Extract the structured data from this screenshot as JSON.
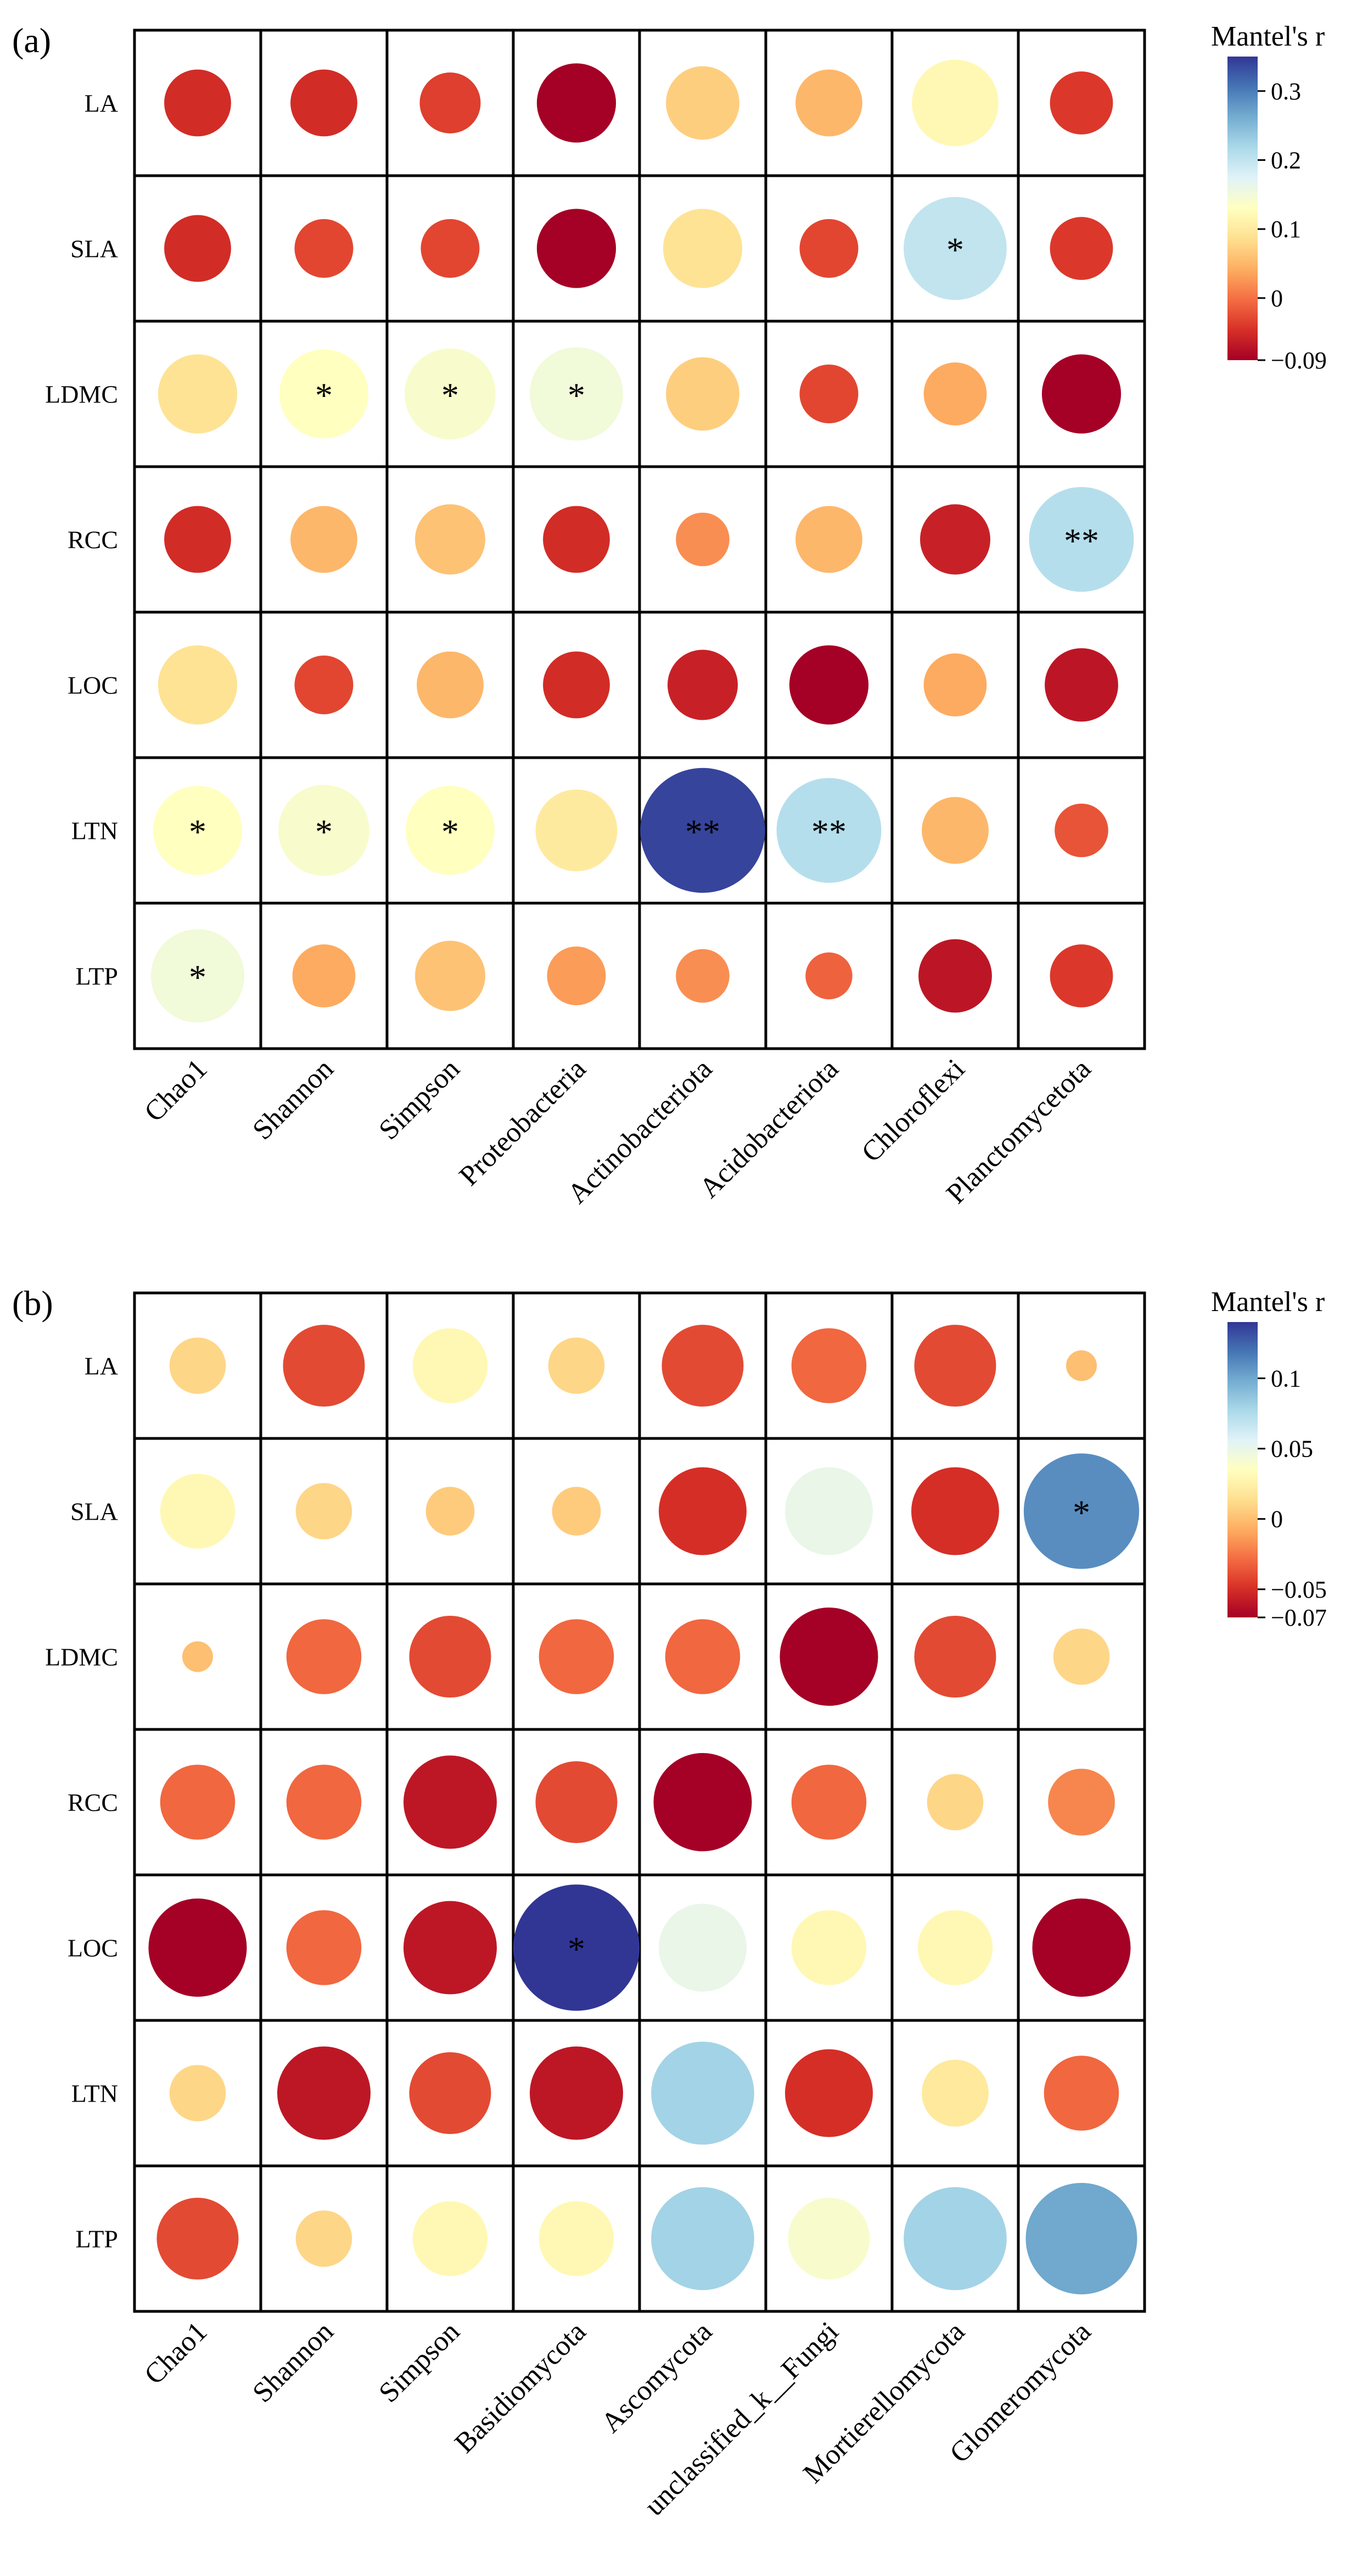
{
  "chart_data": [
    {
      "type": "heatmap",
      "panel_label": "(a)",
      "rows": [
        "LA",
        "SLA",
        "LDMC",
        "RCC",
        "LOC",
        "LTN",
        "LTP"
      ],
      "columns": [
        "Chao1",
        "Shannon",
        "Simpson",
        "Proteobacteria",
        "Actinobacteriota",
        "Acidobacteriota",
        "Chloroflexi",
        "Planctomycetota"
      ],
      "values": [
        [
          -0.05,
          -0.05,
          -0.035,
          -0.09,
          0.07,
          0.05,
          0.12,
          -0.04
        ],
        [
          -0.05,
          -0.03,
          -0.03,
          -0.09,
          0.09,
          -0.03,
          0.2,
          -0.04
        ],
        [
          0.09,
          0.13,
          0.14,
          0.15,
          0.07,
          -0.03,
          0.04,
          -0.09
        ],
        [
          -0.05,
          0.05,
          0.06,
          -0.05,
          0.02,
          0.05,
          -0.06,
          0.21
        ],
        [
          0.09,
          -0.03,
          0.05,
          -0.05,
          -0.06,
          -0.09,
          0.04,
          -0.07
        ],
        [
          0.13,
          0.14,
          0.13,
          0.1,
          0.34,
          0.21,
          0.05,
          -0.02
        ],
        [
          0.15,
          0.04,
          0.06,
          0.03,
          0.02,
          -0.01,
          -0.07,
          -0.04
        ]
      ],
      "significance": [
        [
          "",
          "",
          "",
          "",
          "",
          "",
          "",
          ""
        ],
        [
          "",
          "",
          "",
          "",
          "",
          "",
          "*",
          ""
        ],
        [
          "",
          "*",
          "*",
          "*",
          "",
          "",
          "",
          ""
        ],
        [
          "",
          "",
          "",
          "",
          "",
          "",
          "",
          "**"
        ],
        [
          "",
          "",
          "",
          "",
          "",
          "",
          "",
          ""
        ],
        [
          "*",
          "*",
          "*",
          "",
          "**",
          "**",
          "",
          ""
        ],
        [
          "*",
          "",
          "",
          "",
          "",
          "",
          "",
          ""
        ]
      ],
      "colorbar": {
        "title": "Mantel's r",
        "min": -0.09,
        "max": 0.35,
        "ticks": [
          0.3,
          0.2,
          0.1,
          0,
          -0.09
        ],
        "tick_labels": [
          "0.3",
          "0.2",
          "0.1",
          "0",
          "−0.09"
        ]
      }
    },
    {
      "type": "heatmap",
      "panel_label": "(b)",
      "rows": [
        "LA",
        "SLA",
        "LDMC",
        "RCC",
        "LOC",
        "LTN",
        "LTP"
      ],
      "columns": [
        "Chao1",
        "Shannon",
        "Simpson",
        "Basidiomycota",
        "Ascomycota",
        "unclassified_k__Fungi",
        "Mortierellomycota",
        "Glomeromycota"
      ],
      "values": [
        [
          0.01,
          -0.04,
          0.03,
          0.01,
          -0.04,
          -0.03,
          -0.04,
          0.0
        ],
        [
          0.03,
          0.01,
          0.005,
          0.005,
          -0.05,
          0.05,
          -0.05,
          0.11
        ],
        [
          0.0,
          -0.03,
          -0.04,
          -0.03,
          -0.03,
          -0.07,
          -0.04,
          0.01
        ],
        [
          -0.03,
          -0.03,
          -0.06,
          -0.04,
          -0.07,
          -0.03,
          0.01,
          -0.02
        ],
        [
          -0.07,
          -0.03,
          -0.06,
          0.14,
          0.05,
          0.03,
          0.03,
          -0.07
        ],
        [
          0.01,
          -0.06,
          -0.04,
          -0.06,
          0.08,
          -0.05,
          0.02,
          -0.03
        ],
        [
          -0.04,
          0.01,
          0.03,
          0.03,
          0.08,
          0.04,
          0.08,
          0.1
        ]
      ],
      "significance": [
        [
          "",
          "",
          "",
          "",
          "",
          "",
          "",
          ""
        ],
        [
          "",
          "",
          "",
          "",
          "",
          "",
          "",
          "*"
        ],
        [
          "",
          "",
          "",
          "",
          "",
          "",
          "",
          ""
        ],
        [
          "",
          "",
          "",
          "",
          "",
          "",
          "",
          ""
        ],
        [
          "",
          "",
          "",
          "*",
          "",
          "",
          "",
          ""
        ],
        [
          "",
          "",
          "",
          "",
          "",
          "",
          "",
          ""
        ],
        [
          "",
          "",
          "",
          "",
          "",
          "",
          "",
          ""
        ]
      ],
      "colorbar": {
        "title": "Mantel's r",
        "min": -0.07,
        "max": 0.14,
        "ticks": [
          0.1,
          0.05,
          0,
          -0.05,
          -0.07
        ],
        "tick_labels": [
          "0.1",
          "0.05",
          "0",
          "−0.05",
          "−0.07"
        ]
      }
    }
  ]
}
